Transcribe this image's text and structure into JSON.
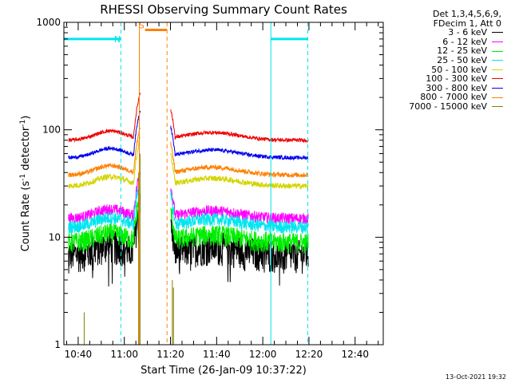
{
  "chart_data": {
    "type": "line",
    "title": "RHESSI Observing Summary Count Rates",
    "xlabel": "Start Time (26-Jan-09 10:37:22)",
    "ylabel_main": "Count Rate (s",
    "ylabel_sup1": "-1",
    "ylabel_mid": " detector",
    "ylabel_sup2": "-1",
    "ylabel_end": ")",
    "y_scale": "log",
    "ylim": [
      1,
      1000
    ],
    "y_ticks": [
      {
        "value": 1,
        "label": "1"
      },
      {
        "value": 10,
        "label": "10"
      },
      {
        "value": 100,
        "label": "100"
      },
      {
        "value": 1000,
        "label": "1000"
      }
    ],
    "x_range_minutes": [
      -6.2,
      132.2
    ],
    "x_ticks": [
      {
        "minute": 0,
        "label": "10:40"
      },
      {
        "minute": 20,
        "label": "11:00"
      },
      {
        "minute": 40,
        "label": "11:20"
      },
      {
        "minute": 60,
        "label": "11:40"
      },
      {
        "minute": 80,
        "label": "12:00"
      },
      {
        "minute": 100,
        "label": "12:20"
      },
      {
        "minute": 120,
        "label": "12:40"
      }
    ],
    "legend_header": [
      "Det 1,3,4,5,6,9,",
      "FDecim 1, Att 0"
    ],
    "series": [
      {
        "name": "3 - 6 keV",
        "color": "#000000",
        "base": 7.0,
        "noise": 0.35
      },
      {
        "name": "6 - 12 keV",
        "color": "#ff00ff",
        "base": 15.0,
        "noise": 0.12
      },
      {
        "name": "12 - 25 keV",
        "color": "#00ee00",
        "base": 9.0,
        "noise": 0.22
      },
      {
        "name": "25 - 50 keV",
        "color": "#00e5ee",
        "base": 12.5,
        "noise": 0.14
      },
      {
        "name": "50 - 100 keV",
        "color": "#d4d400",
        "base": 30.0,
        "noise": 0.06
      },
      {
        "name": "100 - 300 keV",
        "color": "#ee0000",
        "base": 80.0,
        "noise": 0.04
      },
      {
        "name": "300 - 800 keV",
        "color": "#0000ee",
        "base": 55.0,
        "noise": 0.04
      },
      {
        "name": "800 - 7000 keV",
        "color": "#ff8000",
        "base": 38.0,
        "noise": 0.05
      },
      {
        "name": "7000 - 15000 keV",
        "color": "#808000",
        "base": 1.0,
        "noise": 0.0
      }
    ],
    "gap_minutes": [
      27.0,
      40.0
    ],
    "hump_minutes": [
      {
        "center": 14,
        "width": 9,
        "amp": 0.22
      },
      {
        "center": 58,
        "width": 16,
        "amp": 0.18
      }
    ],
    "flags": [
      {
        "label": "N",
        "color": "#00e5ee",
        "start": -6.2,
        "end": 18.5,
        "level": 700,
        "label_minute": 17.0
      },
      {
        "label": "N",
        "color": "#00e5ee",
        "start": 83.5,
        "end": 99.5,
        "level": 700,
        "label_minute": null
      },
      {
        "label": "S",
        "color": "#ff8000",
        "start": 29.0,
        "end": 38.5,
        "level": 850,
        "label_minute": 27.5
      }
    ],
    "vlines": [
      {
        "minute": 18.5,
        "color": "#00e5ee",
        "style": "dashed"
      },
      {
        "minute": 83.5,
        "color": "#00e5ee",
        "style": "solid"
      },
      {
        "minute": 99.5,
        "color": "#00e5ee",
        "style": "dashed"
      },
      {
        "minute": 26.5,
        "color": "#ff8000",
        "style": "solid"
      },
      {
        "minute": 38.5,
        "color": "#ff8000",
        "style": "dashed"
      }
    ],
    "grid": false
  },
  "footer": "13-Oct-2021 19:32"
}
